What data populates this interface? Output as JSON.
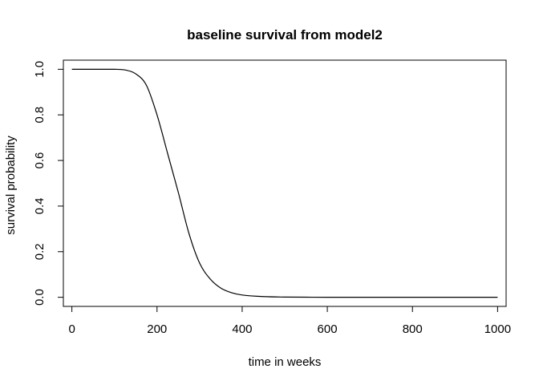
{
  "chart_data": {
    "type": "line",
    "title": "baseline survival from model2",
    "xlabel": "time in weeks",
    "ylabel": "survival probability",
    "xlim": [
      -20,
      1020
    ],
    "ylim": [
      -0.04,
      1.04
    ],
    "x_ticks": [
      0,
      200,
      400,
      600,
      800,
      1000
    ],
    "y_ticks": [
      0.0,
      0.2,
      0.4,
      0.6,
      0.8,
      1.0
    ],
    "x_tick_labels": [
      "0",
      "200",
      "400",
      "600",
      "800",
      "1000"
    ],
    "y_tick_labels": [
      "0.0",
      "0.2",
      "0.4",
      "0.6",
      "0.8",
      "1.0"
    ],
    "grid": false,
    "legend": "none",
    "line_color": "#000000",
    "series": [
      {
        "x": [
          0,
          50,
          100,
          125,
          150,
          175,
          200,
          225,
          250,
          275,
          300,
          325,
          350,
          375,
          400,
          450,
          500,
          600,
          700,
          800,
          900,
          1000
        ],
        "y": [
          1.0,
          1.0,
          1.0,
          0.997,
          0.98,
          0.93,
          0.8,
          0.63,
          0.46,
          0.28,
          0.15,
          0.08,
          0.04,
          0.02,
          0.01,
          0.003,
          0.001,
          0.0,
          0.0,
          0.0,
          0.0,
          0.0
        ]
      }
    ]
  }
}
